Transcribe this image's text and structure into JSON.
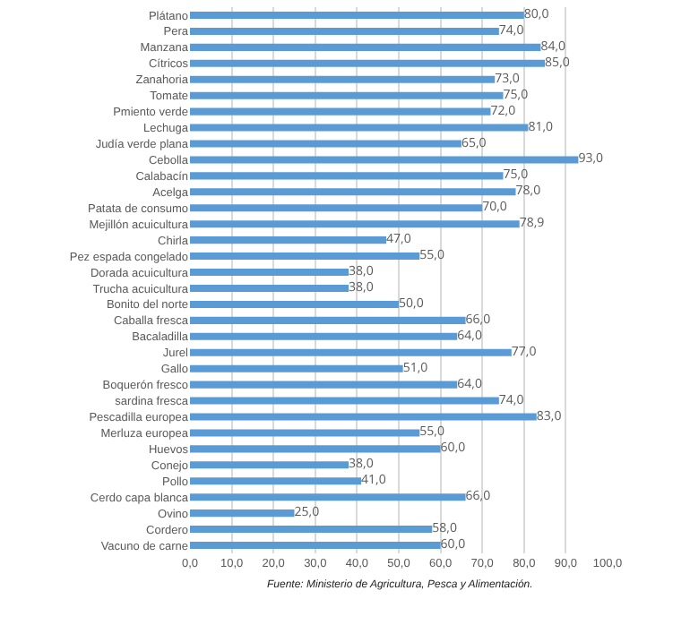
{
  "chart_data": {
    "type": "bar",
    "orientation": "horizontal",
    "categories": [
      "Plátano",
      "Pera",
      "Manzana",
      "Cítricos",
      "Zanahoria",
      "Tomate",
      "Pmiento verde",
      "Lechuga",
      "Judía verde plana",
      "Cebolla",
      "Calabacín",
      "Acelga",
      "Patata de consumo",
      "Mejillón acuicultura",
      "Chirla",
      "Pez espada congelado",
      "Dorada acuicultura",
      "Trucha acuicultura",
      "Bonito del norte",
      "Caballa fresca",
      "Bacaladilla",
      "Jurel",
      "Gallo",
      "Boquerón fresco",
      "sardina fresca",
      "Pescadilla europea",
      "Merluza europea",
      "Huevos",
      "Conejo",
      "Pollo",
      "Cerdo capa blanca",
      "Ovino",
      "Cordero",
      "Vacuno de carne"
    ],
    "values": [
      80,
      74,
      84,
      85,
      73,
      75,
      72,
      81,
      65,
      93,
      75,
      78,
      70,
      78.9,
      47,
      55,
      38,
      38,
      50,
      66,
      64,
      77,
      51,
      64,
      74,
      83,
      55,
      60,
      38,
      41,
      66,
      25,
      58,
      60
    ],
    "value_labels": [
      "80,0",
      "74,0",
      "84,0",
      "85,0",
      "73,0",
      "75,0",
      "72,0",
      "81,0",
      "65,0",
      "93,0",
      "75,0",
      "78,0",
      "70,0",
      "78,9",
      "47,0",
      "55,0",
      "38,0",
      "38,0",
      "50,0",
      "66,0",
      "64,0",
      "77,0",
      "51,0",
      "64,0",
      "74,0",
      "83,0",
      "55,0",
      "60,0",
      "38,0",
      "41,0",
      "66,0",
      "25,0",
      "58,0",
      "60,0"
    ],
    "color": "#5b9bd5",
    "xlim": [
      0,
      100
    ],
    "xticks": [
      {
        "value": 0,
        "label": "0,0"
      },
      {
        "value": 10,
        "label": "10,0"
      },
      {
        "value": 20,
        "label": "20,0"
      },
      {
        "value": 30,
        "label": "30,0"
      },
      {
        "value": 40,
        "label": "40,0"
      },
      {
        "value": 50,
        "label": "50,0"
      },
      {
        "value": 60,
        "label": "60,0"
      },
      {
        "value": 70,
        "label": "70,0"
      },
      {
        "value": 80,
        "label": "80,0"
      },
      {
        "value": 90,
        "label": "90,0"
      },
      {
        "value": 100,
        "label": "100,0"
      }
    ],
    "grid": "x",
    "annotations": [
      "Fuente: Ministerio de Agricultura, Pesca y Alimentación."
    ]
  }
}
